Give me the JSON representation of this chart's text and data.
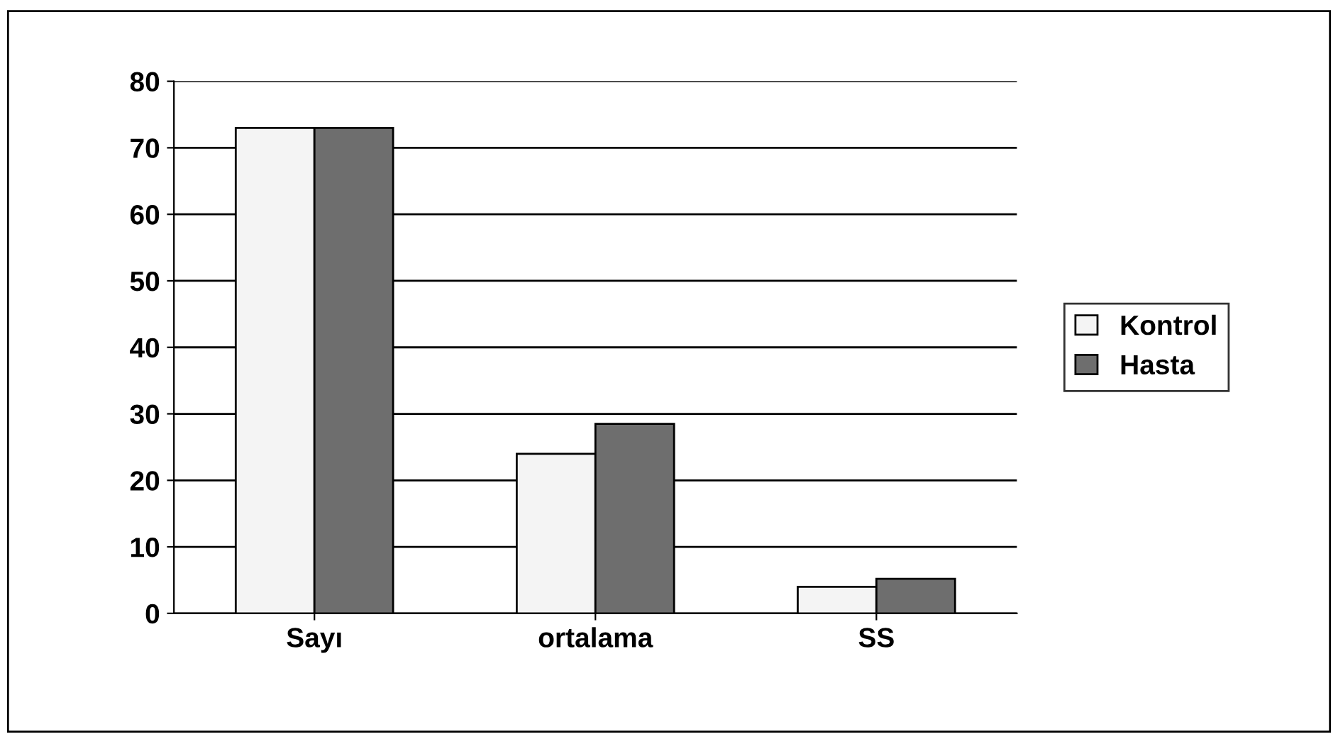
{
  "chart_data": {
    "type": "bar",
    "categories": [
      "Sayı",
      "ortalama",
      "SS"
    ],
    "series": [
      {
        "name": "Kontrol",
        "color": "#f4f4f4",
        "values": [
          73,
          24,
          4
        ]
      },
      {
        "name": "Hasta",
        "color": "#6e6e6e",
        "values": [
          73,
          28.5,
          5.2
        ]
      }
    ],
    "ylim": [
      0,
      80
    ],
    "yticks": [
      0,
      10,
      20,
      30,
      40,
      50,
      60,
      70,
      80
    ],
    "grid": "y",
    "legend": "right"
  }
}
